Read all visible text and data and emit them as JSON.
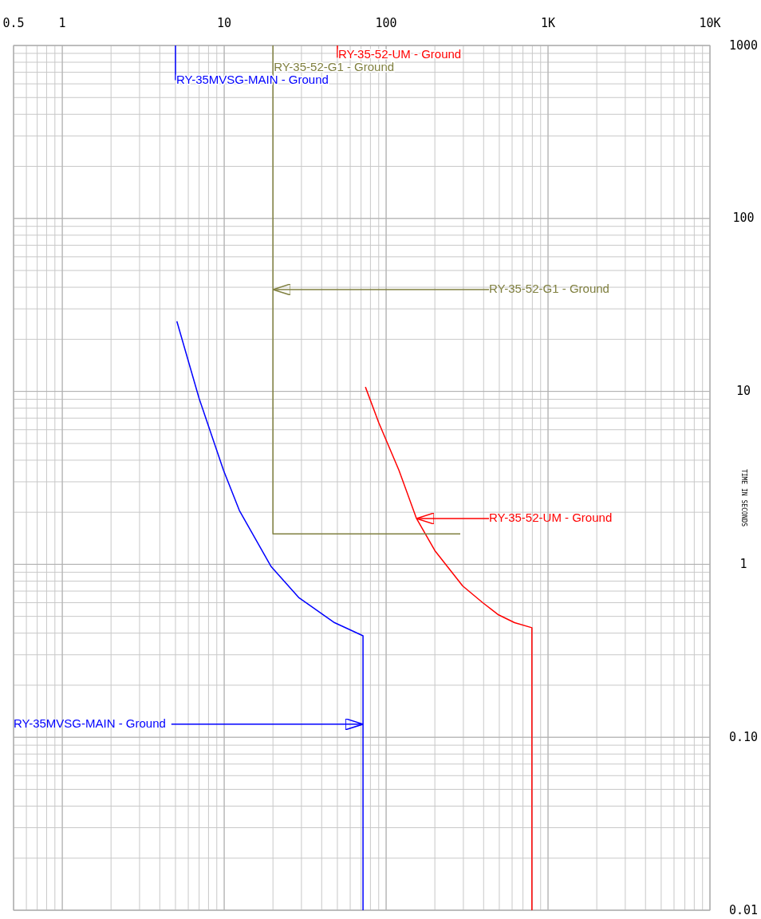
{
  "chart_data": {
    "type": "line",
    "ylabel": "TIME IN SECONDS",
    "log": "xy",
    "grid": true,
    "xlim": [
      0.5,
      10000
    ],
    "xticks": [
      0.5,
      1,
      10,
      100,
      {
        "value": 1000,
        "label": "1K"
      },
      {
        "value": 10000,
        "label": "10K"
      }
    ],
    "ylim": [
      0.01,
      1000
    ],
    "yticks": [
      1000,
      100,
      10,
      1,
      {
        "value": 0.1,
        "label": "0.10"
      },
      0.01
    ],
    "series": [
      {
        "name": "RY-35-52-UM - Ground",
        "color": "#ff0000",
        "x": [
          50,
          50,
          51,
          74.5,
          90,
          120,
          154,
          200,
          297,
          395,
          495,
          621,
          795,
          795
        ],
        "values": [
          1000,
          850,
          null,
          10.6,
          6.6,
          3.5,
          1.84,
          1.2,
          0.75,
          0.6,
          0.51,
          0.46,
          0.43,
          0.01
        ]
      },
      {
        "name": "RY-35-52-G1 - Ground",
        "color": "#808040",
        "x": [
          20,
          20,
          287
        ],
        "values": [
          1000,
          1.5,
          1.5
        ]
      },
      {
        "name": "RY-35MVSG-MAIN - Ground",
        "color": "#0000ff",
        "x": [
          5,
          5,
          5.05,
          5.1,
          7,
          9.9,
          12.4,
          19.5,
          29,
          48,
          72,
          72
        ],
        "values": [
          1000,
          630,
          null,
          25.4,
          9.1,
          3.5,
          2.05,
          0.97,
          0.64,
          0.46,
          0.386,
          0.01
        ]
      }
    ],
    "annotations": [
      {
        "text": "RY-35-52-UM - Ground",
        "x": 154,
        "y": 1.84
      },
      {
        "text": "RY-35-52-G1 - Ground",
        "x": 20,
        "y": 38.8
      },
      {
        "text": "RY-35MVSG-MAIN - Ground",
        "x": 72,
        "y": 0.119
      }
    ]
  }
}
